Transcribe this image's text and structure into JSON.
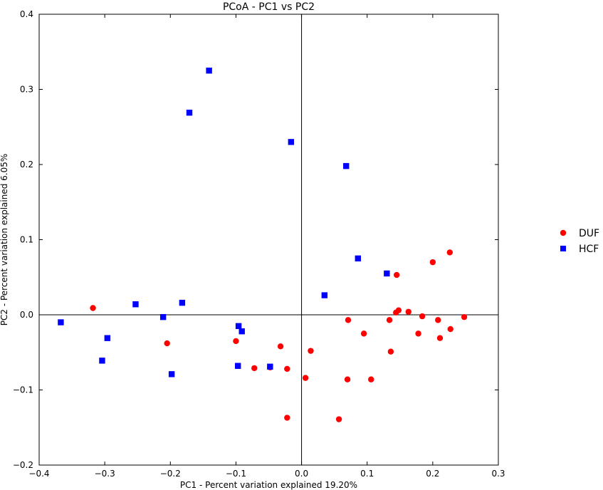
{
  "chart_data": {
    "type": "scatter",
    "title": "PCoA - PC1 vs PC2",
    "xlabel": "PC1 - Percent variation explained 19.20%",
    "ylabel": "PC2 - Percent variation explained 6.05%",
    "xlim": [
      -0.4,
      0.3
    ],
    "ylim": [
      -0.2,
      0.4
    ],
    "xticks": [
      -0.4,
      -0.3,
      -0.2,
      -0.1,
      0.0,
      0.1,
      0.2,
      0.3
    ],
    "xtick_labels": [
      "−0.4",
      "−0.3",
      "−0.2",
      "−0.1",
      "0.0",
      "0.1",
      "0.2",
      "0.3"
    ],
    "yticks": [
      -0.2,
      -0.1,
      0.0,
      0.1,
      0.2,
      0.3,
      0.4
    ],
    "ytick_labels": [
      "−0.2",
      "−0.1",
      "0.0",
      "0.1",
      "0.2",
      "0.3",
      "0.4"
    ],
    "grid": false,
    "zero_lines": true,
    "legend_position": "right",
    "series": [
      {
        "name": "DUF",
        "marker": "circle",
        "color": "#ff0000",
        "points": [
          [
            -0.318,
            0.009
          ],
          [
            -0.205,
            -0.038
          ],
          [
            -0.1,
            -0.035
          ],
          [
            -0.072,
            -0.071
          ],
          [
            -0.048,
            -0.07
          ],
          [
            -0.032,
            -0.042
          ],
          [
            -0.022,
            -0.072
          ],
          [
            -0.022,
            -0.137
          ],
          [
            0.006,
            -0.084
          ],
          [
            0.014,
            -0.048
          ],
          [
            0.057,
            -0.139
          ],
          [
            0.07,
            -0.086
          ],
          [
            0.071,
            -0.007
          ],
          [
            0.095,
            -0.025
          ],
          [
            0.106,
            -0.086
          ],
          [
            0.134,
            -0.007
          ],
          [
            0.136,
            -0.049
          ],
          [
            0.144,
            0.003
          ],
          [
            0.145,
            0.053
          ],
          [
            0.148,
            0.006
          ],
          [
            0.163,
            0.004
          ],
          [
            0.178,
            -0.025
          ],
          [
            0.184,
            -0.002
          ],
          [
            0.2,
            0.07
          ],
          [
            0.208,
            -0.007
          ],
          [
            0.211,
            -0.031
          ],
          [
            0.226,
            0.083
          ],
          [
            0.227,
            -0.019
          ],
          [
            0.248,
            -0.003
          ]
        ]
      },
      {
        "name": "HCF",
        "marker": "square",
        "color": "#0000ff",
        "points": [
          [
            -0.367,
            -0.01
          ],
          [
            -0.304,
            -0.061
          ],
          [
            -0.296,
            -0.031
          ],
          [
            -0.253,
            0.014
          ],
          [
            -0.211,
            -0.003
          ],
          [
            -0.198,
            -0.079
          ],
          [
            -0.182,
            0.016
          ],
          [
            -0.171,
            0.269
          ],
          [
            -0.141,
            0.325
          ],
          [
            -0.097,
            -0.068
          ],
          [
            -0.096,
            -0.015
          ],
          [
            -0.091,
            -0.022
          ],
          [
            -0.048,
            -0.069
          ],
          [
            -0.016,
            0.23
          ],
          [
            0.035,
            0.026
          ],
          [
            0.068,
            0.198
          ],
          [
            0.086,
            0.075
          ],
          [
            0.13,
            0.055
          ]
        ]
      }
    ]
  }
}
